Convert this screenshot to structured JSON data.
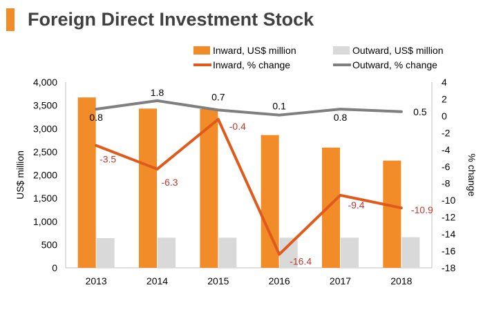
{
  "title": "Foreign Direct Investment Stock",
  "colors": {
    "accent": "#f28c28",
    "inward_bar": "#f28c28",
    "outward_bar": "#d9d9d9",
    "inward_line": "#e05a1c",
    "outward_line": "#7f7f7f",
    "inward_label": "#c0392b",
    "title_text": "#404040"
  },
  "chart_data": {
    "type": "bar",
    "categories": [
      "2013",
      "2014",
      "2015",
      "2016",
      "2017",
      "2018"
    ],
    "ylabel": "US$ million",
    "y2label": "% change",
    "ylim": [
      0,
      4000
    ],
    "y2lim": [
      -18,
      4
    ],
    "yticks": [
      "0",
      "500",
      "1,000",
      "1,500",
      "2,000",
      "2,500",
      "3,000",
      "3,500",
      "4,000"
    ],
    "y2ticks": [
      "-18",
      "-16",
      "-14",
      "-12",
      "-10",
      "-8",
      "-6",
      "-4",
      "-2",
      "0",
      "2",
      "4"
    ],
    "grid": false,
    "legend_position": "top",
    "series": [
      {
        "name": "Inward, US$ million",
        "kind": "bar",
        "axis": "left",
        "values": [
          3670,
          3430,
          3420,
          2860,
          2590,
          2310
        ]
      },
      {
        "name": "Outward, US$ million",
        "kind": "bar",
        "axis": "left",
        "values": [
          640,
          650,
          650,
          650,
          650,
          660
        ]
      },
      {
        "name": "Inward, % change",
        "kind": "line",
        "axis": "right",
        "values": [
          -3.5,
          -6.3,
          -0.4,
          -16.4,
          -9.4,
          -10.9
        ],
        "labels": [
          "-3.5",
          "-6.3",
          "-0.4",
          "-16.4",
          "-9.4",
          "-10.9"
        ]
      },
      {
        "name": "Outward, % change",
        "kind": "line",
        "axis": "right",
        "values": [
          0.8,
          1.8,
          0.7,
          0.1,
          0.8,
          0.5
        ],
        "labels": [
          "0.8",
          "1.8",
          "0.7",
          "0.1",
          "0.8",
          "0.5"
        ]
      }
    ]
  }
}
